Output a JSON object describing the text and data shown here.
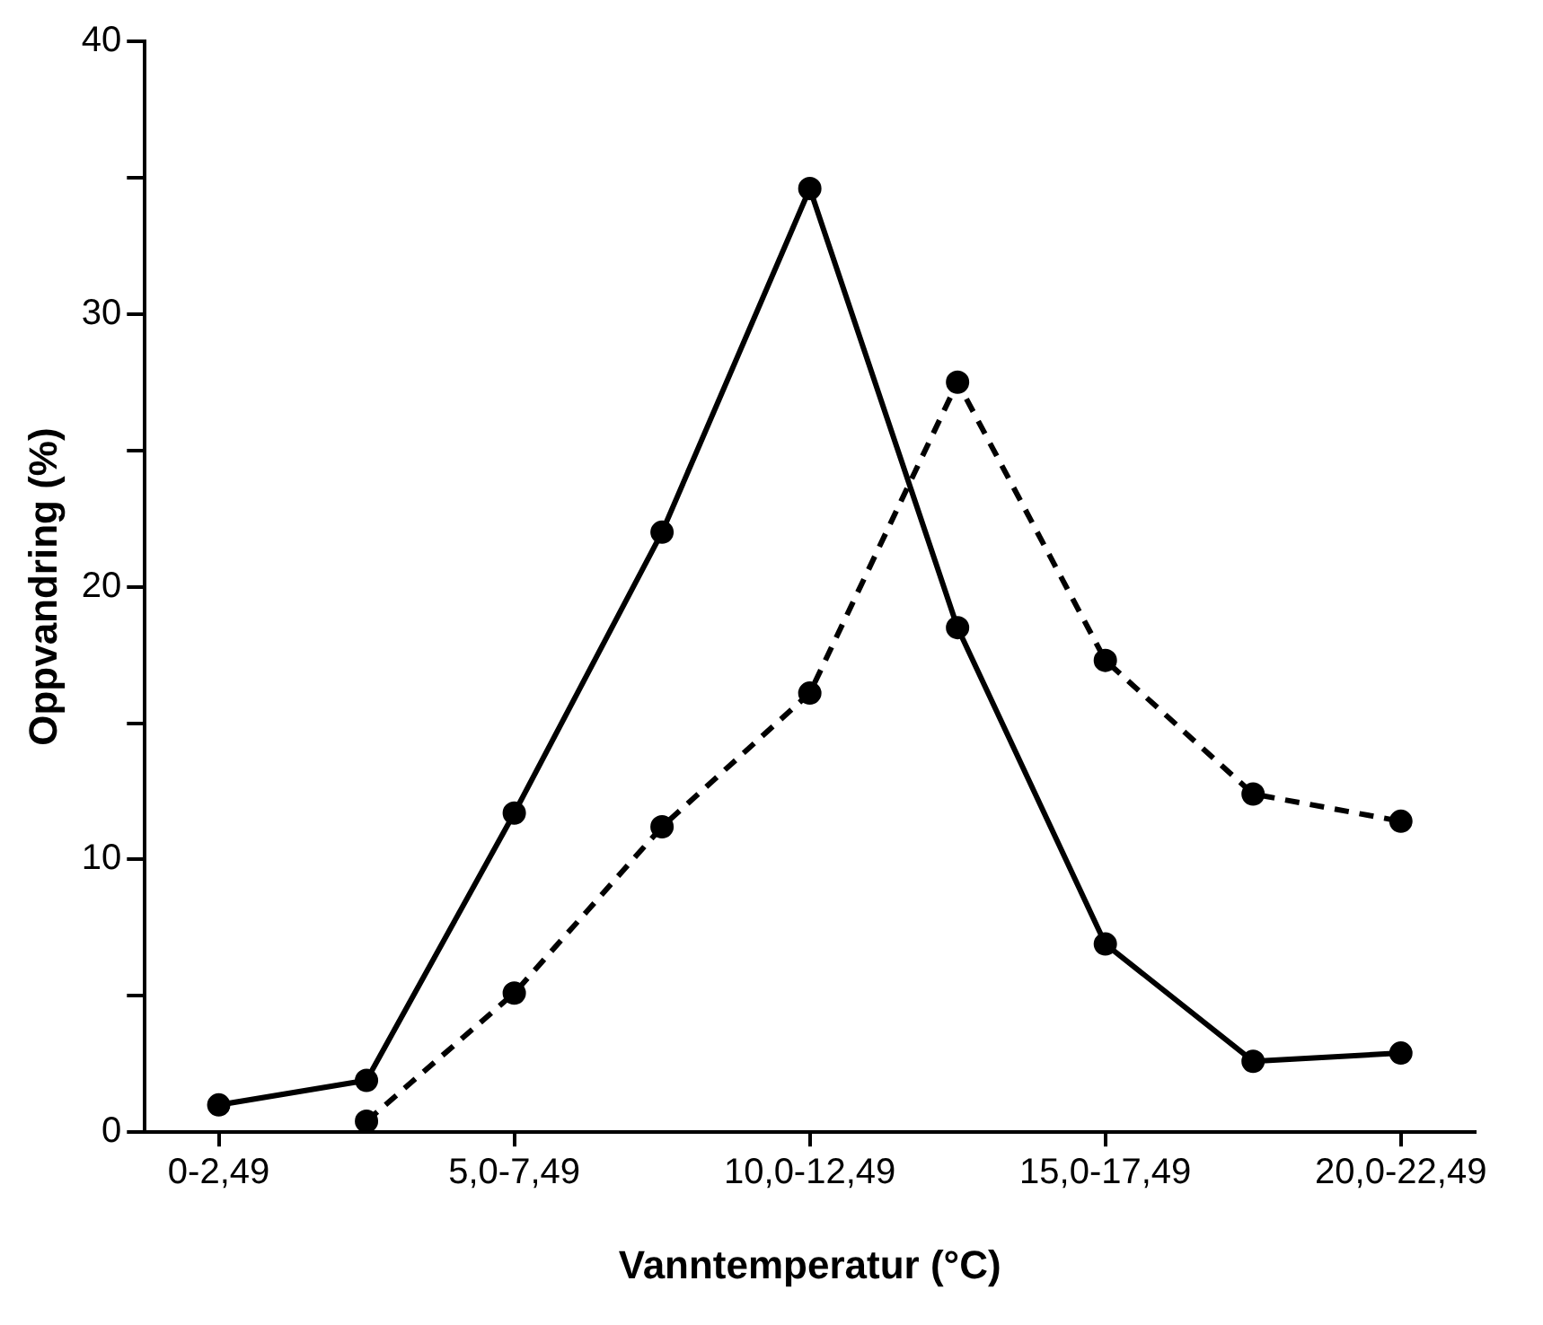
{
  "chart_data": {
    "type": "line",
    "xlabel": "Vanntemperatur (°C)",
    "ylabel": "Oppvandring (%)",
    "categories": [
      "0-2,49",
      null,
      "5,0-7,49",
      null,
      "10,0-12,49",
      null,
      "15,0-17,49",
      null,
      "20,0-22,49"
    ],
    "series": [
      {
        "color": "#000000",
        "line_style": "solid",
        "values": [
          1.0,
          1.9,
          11.7,
          22.0,
          34.6,
          18.5,
          6.9,
          2.6,
          2.9
        ]
      },
      {
        "color": "#000000",
        "line_style": "dashed",
        "values": [
          null,
          0.4,
          5.1,
          11.2,
          16.1,
          27.5,
          17.3,
          12.4,
          11.4
        ]
      }
    ],
    "ylim": [
      0,
      40
    ],
    "yticks": [
      0,
      {
        "value": 5,
        "label": null
      },
      10,
      {
        "value": 15,
        "label": null
      },
      20,
      {
        "value": 25,
        "label": null
      },
      30,
      {
        "value": 35,
        "label": null
      },
      40
    ],
    "grid": false,
    "legend": false,
    "marker": "circle"
  }
}
